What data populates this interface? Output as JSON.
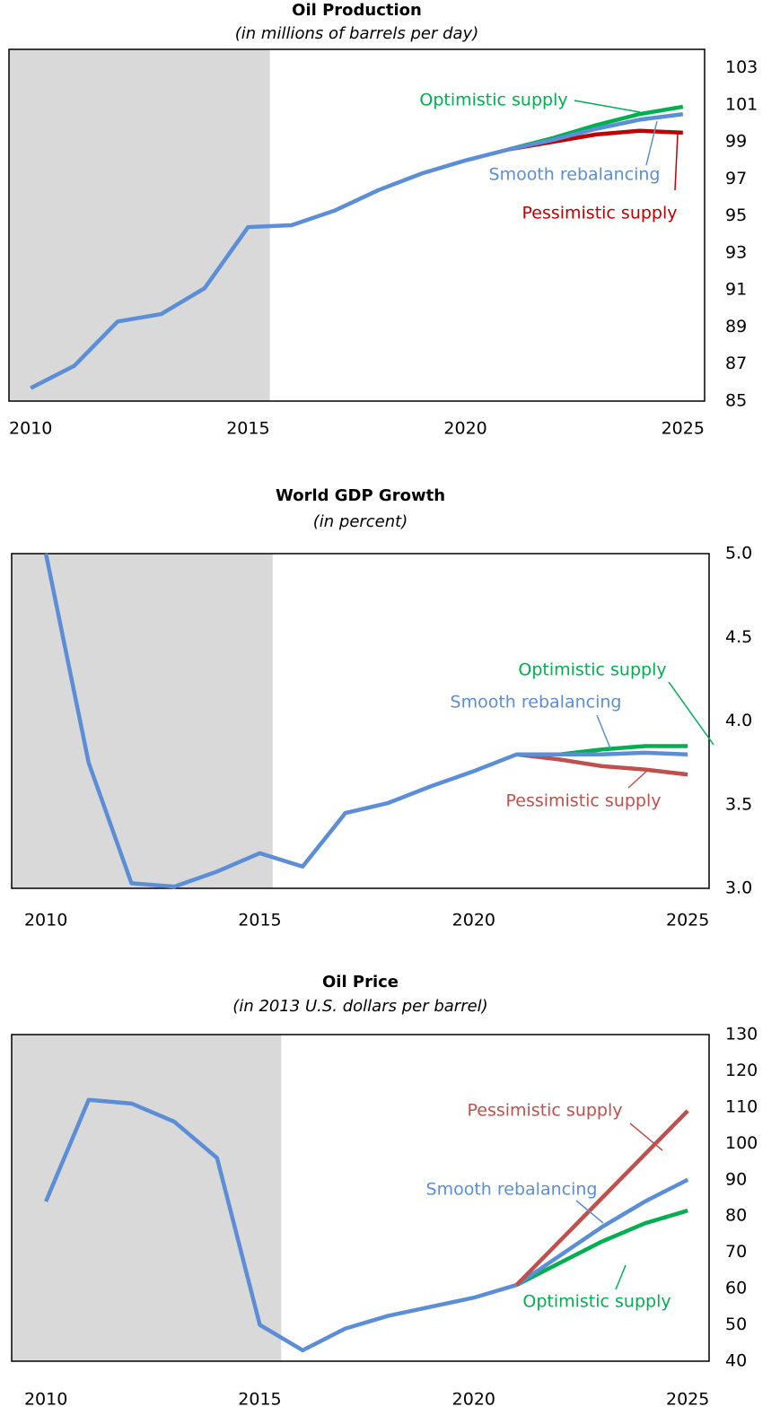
{
  "chart_data": [
    {
      "type": "line",
      "title": "Oil Production",
      "subtitle": "(in millions of barrels per day)",
      "x": [
        2010,
        2011,
        2012,
        2013,
        2014,
        2015,
        2016,
        2017,
        2018,
        2019,
        2020,
        2021,
        2022,
        2023,
        2024,
        2025
      ],
      "xlim": [
        2009.5,
        2025.5
      ],
      "xticks": [
        2010,
        2015,
        2020,
        2025
      ],
      "ylim": [
        85,
        104
      ],
      "yticks": [
        85,
        87,
        89,
        91,
        93,
        95,
        97,
        99,
        101,
        103
      ],
      "shaded_x": [
        2009.5,
        2015.5
      ],
      "shade_color": "#d9d9d9",
      "series": [
        {
          "name": "Optimistic supply",
          "color": "#00b050",
          "values": [
            null,
            null,
            null,
            null,
            null,
            null,
            null,
            null,
            null,
            null,
            null,
            98.6,
            99.2,
            99.9,
            100.5,
            100.9
          ]
        },
        {
          "name": "Pessimistic supply",
          "color": "#c00000",
          "values": [
            null,
            null,
            null,
            null,
            null,
            null,
            null,
            null,
            null,
            null,
            null,
            98.6,
            99.0,
            99.4,
            99.6,
            99.5
          ]
        },
        {
          "name": "Smooth rebalancing",
          "color": "#5b8ed6",
          "values": [
            85.7,
            86.9,
            89.3,
            89.7,
            91.1,
            94.4,
            94.5,
            95.3,
            96.4,
            97.3,
            98.0,
            98.6,
            99.1,
            99.7,
            100.2,
            100.5
          ]
        }
      ]
    },
    {
      "type": "line",
      "title": "World GDP Growth",
      "subtitle": "(in percent)",
      "x": [
        2010,
        2011,
        2012,
        2013,
        2014,
        2015,
        2016,
        2017,
        2018,
        2019,
        2020,
        2021,
        2022,
        2023,
        2024,
        2025
      ],
      "xlim": [
        2009.2,
        2025.5
      ],
      "xticks": [
        2010,
        2015,
        2020,
        2025
      ],
      "ylim": [
        3,
        5
      ],
      "yticks": [
        {
          "value": 3,
          "label": "3.0"
        },
        3.5,
        {
          "value": 4,
          "label": "4.0"
        },
        4.5,
        {
          "value": 5,
          "label": "5.0"
        }
      ],
      "shaded_x": [
        2009.2,
        2015.3
      ],
      "shade_color": "#d9d9d9",
      "series": [
        {
          "name": "Optimistic supply",
          "color": "#00b050",
          "values": [
            null,
            null,
            null,
            null,
            null,
            null,
            null,
            null,
            null,
            null,
            null,
            3.8,
            3.8,
            3.83,
            3.85,
            3.85
          ]
        },
        {
          "name": "Pessimistic supply",
          "color": "#c0504d",
          "values": [
            null,
            null,
            null,
            null,
            null,
            null,
            null,
            null,
            null,
            null,
            null,
            3.8,
            3.77,
            3.73,
            3.71,
            3.68
          ]
        },
        {
          "name": "Smooth rebalancing",
          "color": "#5b8ed6",
          "values": [
            5.0,
            3.75,
            3.03,
            3.01,
            3.1,
            3.21,
            3.13,
            3.45,
            3.51,
            3.61,
            3.7,
            3.8,
            3.8,
            3.8,
            3.81,
            3.8
          ]
        }
      ]
    },
    {
      "type": "line",
      "title": "Oil Price",
      "subtitle": "(in 2013 U.S. dollars per barrel)",
      "x": [
        2010,
        2011,
        2012,
        2013,
        2014,
        2015,
        2016,
        2017,
        2018,
        2019,
        2020,
        2021,
        2022,
        2023,
        2024,
        2025
      ],
      "xlim": [
        2009.2,
        2025.5
      ],
      "xticks": [
        2010,
        2015,
        2020,
        2025
      ],
      "ylim": [
        40,
        130
      ],
      "yticks": [
        40,
        50,
        60,
        70,
        80,
        90,
        100,
        110,
        120,
        130
      ],
      "shaded_x": [
        2009.2,
        2015.5
      ],
      "shade_color": "#d9d9d9",
      "series": [
        {
          "name": "Optimistic supply",
          "color": "#00b050",
          "values": [
            null,
            null,
            null,
            null,
            null,
            null,
            null,
            null,
            null,
            null,
            null,
            61,
            67,
            73,
            78,
            81.5
          ]
        },
        {
          "name": "Smooth rebalancing",
          "color": "#5b8ed6",
          "values": [
            84,
            112,
            111,
            106,
            96,
            50,
            43,
            49,
            52.5,
            55,
            57.5,
            61,
            69,
            77,
            84,
            90
          ]
        },
        {
          "name": "Pessimistic supply",
          "color": "#c0504d",
          "values": [
            null,
            null,
            null,
            null,
            null,
            null,
            null,
            null,
            null,
            null,
            null,
            61,
            73,
            85,
            97,
            109
          ]
        }
      ]
    }
  ]
}
